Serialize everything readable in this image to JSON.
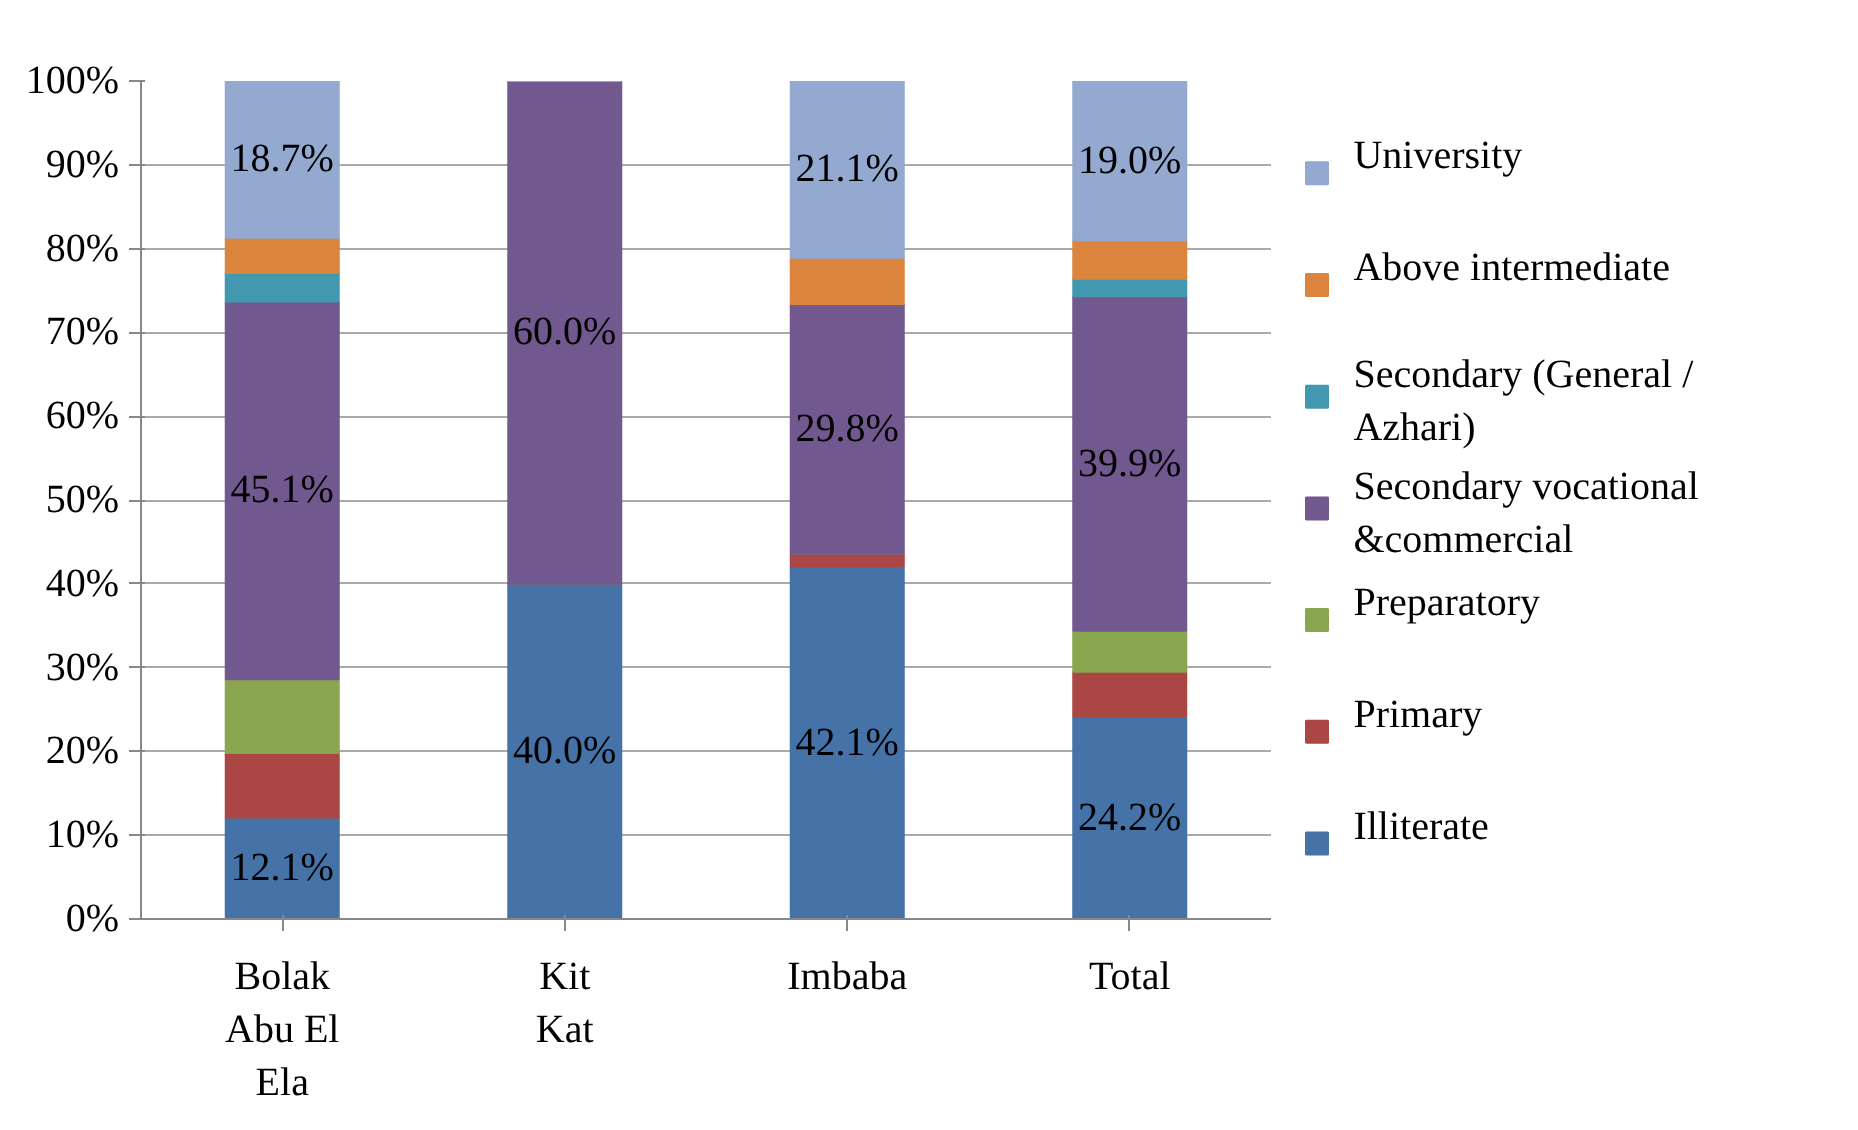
{
  "chart_data": {
    "type": "bar",
    "stacked": true,
    "categories": [
      "Bolak Abu El Ela",
      "Kit Kat",
      "Imbaba",
      "Total"
    ],
    "series": [
      {
        "name": "Illiterate",
        "color": "#4572a7",
        "values": [
          12.1,
          40.0,
          42.1,
          24.2
        ],
        "value_labels": [
          "12.1%",
          "40.0%",
          "42.1%",
          "24.2%"
        ]
      },
      {
        "name": "Primary",
        "color": "#aa4643",
        "values": [
          7.7,
          0,
          1.5,
          5.3
        ]
      },
      {
        "name": "Preparatory",
        "color": "#89a54e",
        "values": [
          8.8,
          0,
          0,
          4.9
        ]
      },
      {
        "name": "Secondary vocational &commercial",
        "color": "#71588f",
        "values": [
          45.1,
          60.0,
          29.8,
          39.9
        ],
        "value_labels": [
          "45.1%",
          "60.0%",
          "29.8%",
          "39.9%"
        ]
      },
      {
        "name": "Secondary (General / Azhari)",
        "color": "#4198af",
        "values": [
          3.4,
          0,
          0,
          2.1
        ]
      },
      {
        "name": "Above intermediate",
        "color": "#db843d",
        "values": [
          4.2,
          0,
          5.5,
          4.6
        ]
      },
      {
        "name": "University",
        "color": "#93a9cf",
        "values": [
          18.7,
          0,
          21.1,
          19.0
        ],
        "value_labels": [
          "18.7%",
          null,
          "21.1%",
          "19.0%"
        ]
      }
    ],
    "ylim": [
      0,
      100
    ],
    "yticks": [
      {
        "value": 0,
        "label": "0%"
      },
      {
        "value": 10,
        "label": "10%"
      },
      {
        "value": 20,
        "label": "20%"
      },
      {
        "value": 30,
        "label": "30%"
      },
      {
        "value": 40,
        "label": "40%"
      },
      {
        "value": 50,
        "label": "50%"
      },
      {
        "value": 60,
        "label": "60%"
      },
      {
        "value": 70,
        "label": "70%"
      },
      {
        "value": 80,
        "label": "80%"
      },
      {
        "value": 90,
        "label": "90%"
      },
      {
        "value": 100,
        "label": "100%"
      }
    ],
    "grid": "y",
    "legend": "right"
  }
}
